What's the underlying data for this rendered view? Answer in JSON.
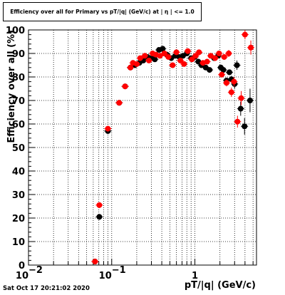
{
  "header": {
    "title": "Efficiency over all for Primary vs pT/|q| (GeV/c) at | η | <= 1.0"
  },
  "footer": {
    "timestamp": "Sat Oct 17 20:21:02 2020"
  },
  "chart_data": {
    "type": "scatter",
    "title": "Efficiency over all for Primary vs pT/|q| (GeV/c) at | η | <= 1.0",
    "xlabel": "pT/|q| (GeV/c)",
    "ylabel": "Efficiency over all (%)",
    "x_scale": "log",
    "xlim": [
      0.01,
      5.5
    ],
    "ylim": [
      0,
      100
    ],
    "grid": true,
    "x_ticks": [
      {
        "value": 0.01,
        "base": "10",
        "exp": "−2"
      },
      {
        "value": 0.1,
        "base": "10",
        "exp": "−1"
      },
      {
        "value": 1,
        "base": "1",
        "exp": ""
      }
    ],
    "y_ticks": [
      0,
      10,
      20,
      30,
      40,
      50,
      60,
      70,
      80,
      90,
      100
    ],
    "series": [
      {
        "color": "#000000",
        "points": [
          {
            "x": 0.063,
            "y": 1.5,
            "ey": 0.8
          },
          {
            "x": 0.071,
            "y": 20.5,
            "ey": 1.2
          },
          {
            "x": 0.09,
            "y": 57.0,
            "ey": 1.2
          },
          {
            "x": 0.123,
            "y": 69.0,
            "ey": 1.0
          },
          {
            "x": 0.145,
            "y": 76.0,
            "ey": 1.0
          },
          {
            "x": 0.168,
            "y": 84.0,
            "ey": 1.0
          },
          {
            "x": 0.19,
            "y": 85.0,
            "ey": 1.0
          },
          {
            "x": 0.215,
            "y": 86.0,
            "ey": 1.0
          },
          {
            "x": 0.24,
            "y": 87.0,
            "ey": 1.0
          },
          {
            "x": 0.27,
            "y": 88.5,
            "ey": 1.0
          },
          {
            "x": 0.3,
            "y": 88.0,
            "ey": 1.0
          },
          {
            "x": 0.33,
            "y": 87.5,
            "ey": 1.0
          },
          {
            "x": 0.37,
            "y": 91.5,
            "ey": 1.0
          },
          {
            "x": 0.41,
            "y": 92.0,
            "ey": 1.0
          },
          {
            "x": 0.46,
            "y": 89.5,
            "ey": 1.0
          },
          {
            "x": 0.52,
            "y": 88.0,
            "ey": 1.0
          },
          {
            "x": 0.58,
            "y": 89.0,
            "ey": 1.0
          },
          {
            "x": 0.65,
            "y": 88.5,
            "ey": 1.0
          },
          {
            "x": 0.72,
            "y": 89.0,
            "ey": 1.0
          },
          {
            "x": 0.8,
            "y": 90.0,
            "ey": 1.0
          },
          {
            "x": 0.9,
            "y": 88.0,
            "ey": 1.0
          },
          {
            "x": 1.0,
            "y": 88.5,
            "ey": 1.0
          },
          {
            "x": 1.1,
            "y": 86.5,
            "ey": 1.0
          },
          {
            "x": 1.2,
            "y": 85.0,
            "ey": 1.0
          },
          {
            "x": 1.35,
            "y": 84.0,
            "ey": 1.0
          },
          {
            "x": 1.5,
            "y": 83.0,
            "ey": 1.0
          },
          {
            "x": 1.7,
            "y": 88.0,
            "ey": 1.0
          },
          {
            "x": 1.9,
            "y": 89.0,
            "ey": 1.0
          },
          {
            "x": 2.05,
            "y": 84.0,
            "ey": 1.0
          },
          {
            "x": 2.2,
            "y": 83.0,
            "ey": 1.0
          },
          {
            "x": 2.4,
            "y": 78.5,
            "ey": 1.2
          },
          {
            "x": 2.6,
            "y": 82.0,
            "ey": 1.2
          },
          {
            "x": 2.75,
            "y": 79.0,
            "ey": 1.5
          },
          {
            "x": 3.0,
            "y": 77.0,
            "ey": 2.0
          },
          {
            "x": 3.2,
            "y": 85.0,
            "ey": 2.0
          },
          {
            "x": 3.55,
            "y": 66.5,
            "ey": 3.0
          },
          {
            "x": 3.95,
            "y": 59.0,
            "ey": 3.5
          },
          {
            "x": 4.6,
            "y": 70.0,
            "ey": 5.0
          }
        ]
      },
      {
        "color": "#ff0000",
        "points": [
          {
            "x": 0.063,
            "y": 1.5,
            "ey": 0.8
          },
          {
            "x": 0.071,
            "y": 25.5,
            "ey": 1.2
          },
          {
            "x": 0.09,
            "y": 58.0,
            "ey": 1.2
          },
          {
            "x": 0.123,
            "y": 69.0,
            "ey": 1.0
          },
          {
            "x": 0.145,
            "y": 76.0,
            "ey": 1.0
          },
          {
            "x": 0.168,
            "y": 84.0,
            "ey": 1.0
          },
          {
            "x": 0.18,
            "y": 86.0,
            "ey": 1.0
          },
          {
            "x": 0.2,
            "y": 85.5,
            "ey": 1.0
          },
          {
            "x": 0.22,
            "y": 88.0,
            "ey": 1.0
          },
          {
            "x": 0.25,
            "y": 89.0,
            "ey": 1.0
          },
          {
            "x": 0.28,
            "y": 87.0,
            "ey": 1.0
          },
          {
            "x": 0.31,
            "y": 90.0,
            "ey": 1.0
          },
          {
            "x": 0.34,
            "y": 89.5,
            "ey": 1.0
          },
          {
            "x": 0.38,
            "y": 89.0,
            "ey": 1.0
          },
          {
            "x": 0.43,
            "y": 90.0,
            "ey": 1.0
          },
          {
            "x": 0.48,
            "y": 88.5,
            "ey": 1.0
          },
          {
            "x": 0.54,
            "y": 85.0,
            "ey": 1.0
          },
          {
            "x": 0.6,
            "y": 90.5,
            "ey": 1.0
          },
          {
            "x": 0.67,
            "y": 87.0,
            "ey": 1.0
          },
          {
            "x": 0.74,
            "y": 85.5,
            "ey": 1.0
          },
          {
            "x": 0.82,
            "y": 91.0,
            "ey": 1.0
          },
          {
            "x": 0.92,
            "y": 87.5,
            "ey": 1.0
          },
          {
            "x": 1.02,
            "y": 89.0,
            "ey": 1.0
          },
          {
            "x": 1.12,
            "y": 90.5,
            "ey": 1.0
          },
          {
            "x": 1.25,
            "y": 86.0,
            "ey": 1.0
          },
          {
            "x": 1.4,
            "y": 86.5,
            "ey": 1.0
          },
          {
            "x": 1.55,
            "y": 89.0,
            "ey": 1.0
          },
          {
            "x": 1.75,
            "y": 88.0,
            "ey": 1.0
          },
          {
            "x": 1.95,
            "y": 90.0,
            "ey": 1.0
          },
          {
            "x": 2.1,
            "y": 81.0,
            "ey": 1.2
          },
          {
            "x": 2.25,
            "y": 88.5,
            "ey": 1.2
          },
          {
            "x": 2.4,
            "y": 77.5,
            "ey": 1.5
          },
          {
            "x": 2.55,
            "y": 90.0,
            "ey": 1.5
          },
          {
            "x": 2.75,
            "y": 73.5,
            "ey": 2.0
          },
          {
            "x": 2.95,
            "y": 78.0,
            "ey": 2.0
          },
          {
            "x": 3.25,
            "y": 61.0,
            "ey": 2.5
          },
          {
            "x": 3.6,
            "y": 71.0,
            "ey": 3.0
          },
          {
            "x": 4.0,
            "y": 98.0,
            "ey": 2.0
          },
          {
            "x": 4.7,
            "y": 92.5,
            "ey": 3.0
          }
        ]
      }
    ]
  }
}
